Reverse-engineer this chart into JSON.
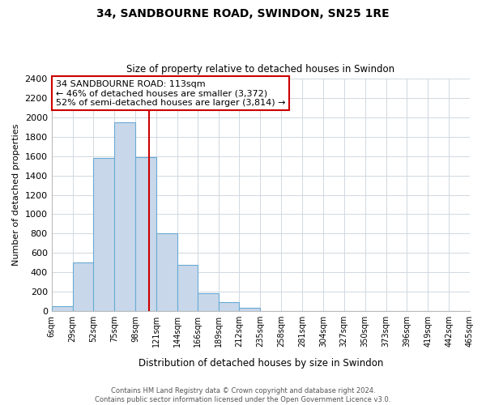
{
  "title": "34, SANDBOURNE ROAD, SWINDON, SN25 1RE",
  "subtitle": "Size of property relative to detached houses in Swindon",
  "xlabel": "Distribution of detached houses by size in Swindon",
  "ylabel": "Number of detached properties",
  "bin_edges": [
    6,
    29,
    52,
    75,
    98,
    121,
    144,
    166,
    189,
    212,
    235,
    258,
    281,
    304,
    327,
    350,
    373,
    396,
    419,
    442,
    465
  ],
  "bin_labels": [
    "6sqm",
    "29sqm",
    "52sqm",
    "75sqm",
    "98sqm",
    "121sqm",
    "144sqm",
    "166sqm",
    "189sqm",
    "212sqm",
    "235sqm",
    "258sqm",
    "281sqm",
    "304sqm",
    "327sqm",
    "350sqm",
    "373sqm",
    "396sqm",
    "419sqm",
    "442sqm",
    "465sqm"
  ],
  "counts": [
    50,
    500,
    1580,
    1950,
    1590,
    800,
    475,
    185,
    90,
    30,
    0,
    0,
    0,
    0,
    0,
    0,
    0,
    0,
    0,
    0
  ],
  "bar_color": "#c8d8ea",
  "bar_edge_color": "#6aaad4",
  "property_line_x": 113,
  "property_label": "34 SANDBOURNE ROAD: 113sqm",
  "annotation_line1": "← 46% of detached houses are smaller (3,372)",
  "annotation_line2": "52% of semi-detached houses are larger (3,814) →",
  "annotation_box_color": "#ffffff",
  "annotation_box_edge": "#cc0000",
  "vline_color": "#cc0000",
  "ylim": [
    0,
    2400
  ],
  "yticks": [
    0,
    200,
    400,
    600,
    800,
    1000,
    1200,
    1400,
    1600,
    1800,
    2000,
    2200,
    2400
  ],
  "footer_line1": "Contains HM Land Registry data © Crown copyright and database right 2024.",
  "footer_line2": "Contains public sector information licensed under the Open Government Licence v3.0.",
  "background_color": "#ffffff",
  "grid_color": "#d0d8e0"
}
